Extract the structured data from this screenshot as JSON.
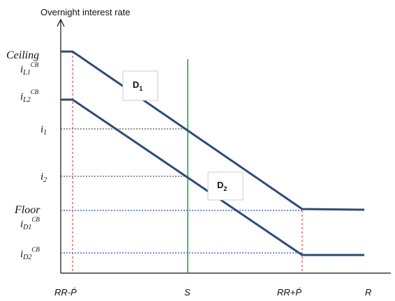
{
  "diagram": {
    "y_axis_title": "Overnight interest rate",
    "y_labels": {
      "ceiling": "Ceiling",
      "i_l1": "i",
      "i_l1_sub": "L1",
      "i_l1_sup": "CB",
      "i_l2": "i",
      "i_l2_sub": "L2",
      "i_l2_sup": "CB",
      "i1": "i",
      "i1_sub": "1",
      "i2": "i",
      "i2_sub": "2",
      "floor": "Floor",
      "i_d1": "i",
      "i_d1_sub": "D1",
      "i_d1_sup": "CB",
      "i_d2": "i",
      "i_d2_sub": "D2",
      "i_d2_sup": "CB"
    },
    "x_labels": {
      "rr_minus": "RR-Ṕ",
      "s": "S",
      "rr_plus": "RR+Ṕ",
      "r": "R"
    },
    "curve_labels": {
      "d1": "D",
      "d1_sub": "1",
      "d2": "D",
      "d2_sub": "2"
    },
    "colors": {
      "demand_curve": "#2e4a78",
      "supply_line": "#22aa44",
      "red_guides": "#e02020",
      "blue_guides": "#4a6fc0",
      "black_guides": "#222222",
      "axis": "#111111"
    }
  }
}
